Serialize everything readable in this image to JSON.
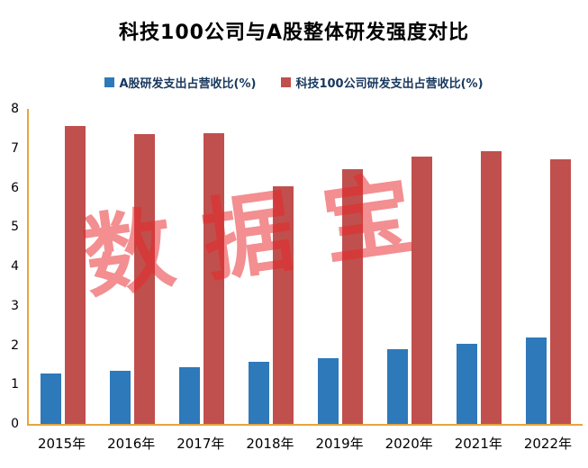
{
  "title": "科技100公司与A股整体研发强度对比",
  "watermark": "数据宝",
  "colors": {
    "series_a_share": "#2E79BA",
    "series_tech100": "#C0504D",
    "axis_line": "#E8A33D",
    "title_text": "#000000",
    "legend_text": "#17375E",
    "watermark_red": "#E8262D"
  },
  "chart_data": {
    "type": "bar",
    "title": "科技100公司与A股整体研发强度对比",
    "categories": [
      "2015年",
      "2016年",
      "2017年",
      "2018年",
      "2019年",
      "2020年",
      "2021年",
      "2022年"
    ],
    "series": [
      {
        "name": "A股研发支出占营收比(%)",
        "color": "#2E79BA",
        "values": [
          1.28,
          1.36,
          1.45,
          1.58,
          1.66,
          1.9,
          2.03,
          2.2
        ]
      },
      {
        "name": "科技100公司研发支出占营收比(%)",
        "color": "#C0504D",
        "values": [
          7.57,
          7.35,
          7.38,
          6.03,
          6.46,
          6.78,
          6.93,
          6.72
        ]
      }
    ],
    "ylim": [
      0,
      8
    ],
    "yticks": [
      0,
      1,
      2,
      3,
      4,
      5,
      6,
      7,
      8
    ],
    "xlabel": "",
    "ylabel": "",
    "grid": false,
    "legend_position": "top"
  }
}
